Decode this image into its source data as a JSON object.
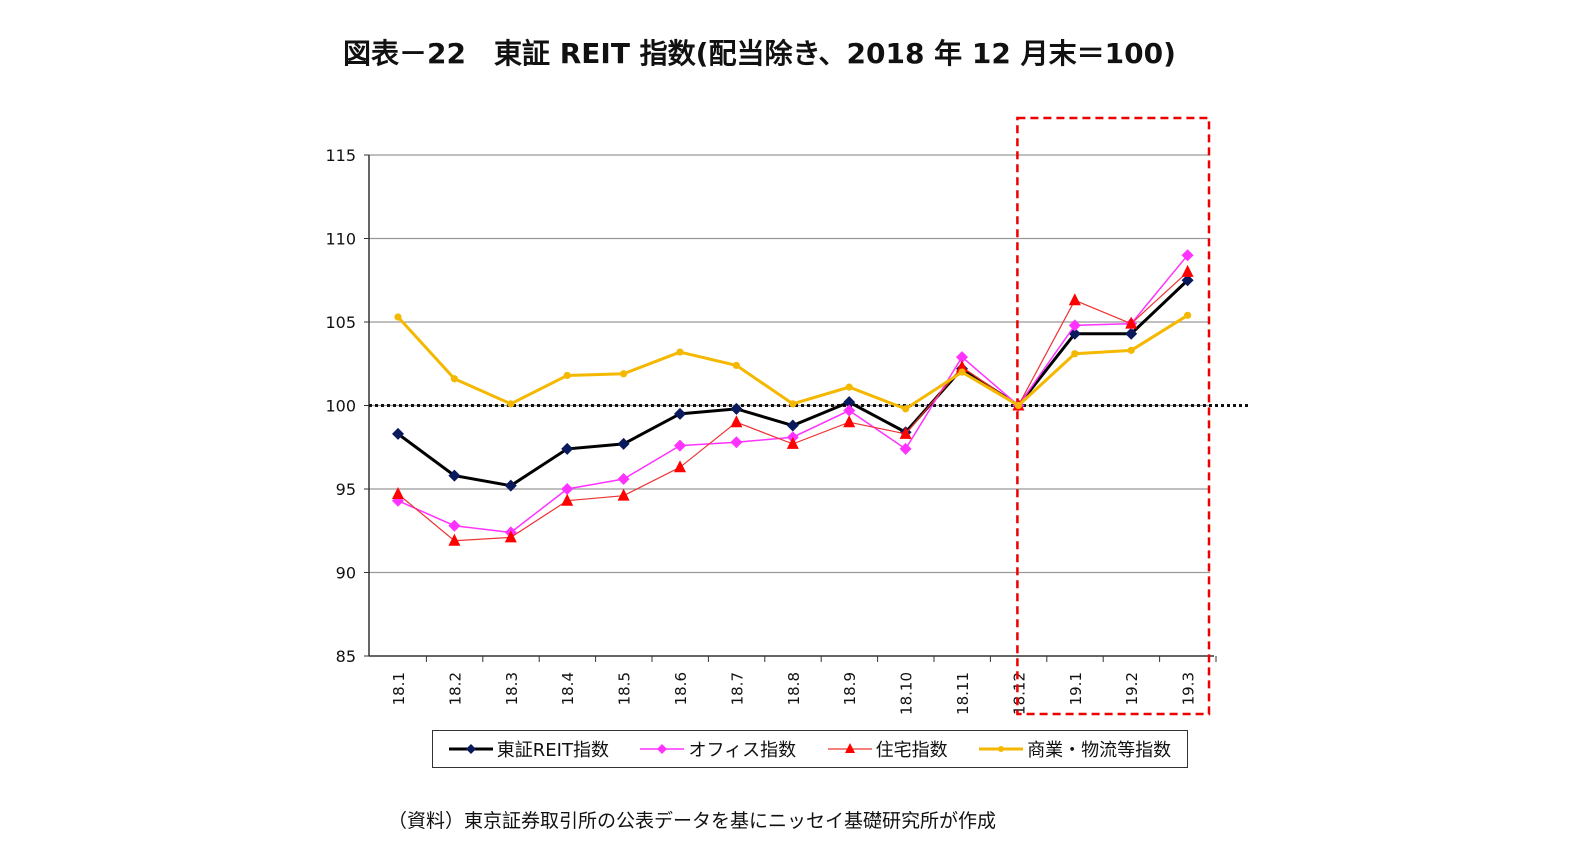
{
  "chart_data": {
    "type": "line",
    "title": "図表－22　東証 REIT 指数(配当除き、2018 年 12 月末＝100)",
    "categories": [
      "18.1",
      "18.2",
      "18.3",
      "18.4",
      "18.5",
      "18.6",
      "18.7",
      "18.8",
      "18.9",
      "18.10",
      "18.11",
      "18.12",
      "19.1",
      "19.2",
      "19.3"
    ],
    "ylim": [
      85,
      115
    ],
    "yticks": [
      85,
      90,
      95,
      100,
      105,
      110,
      115
    ],
    "grid": true,
    "reference_line": 100,
    "highlight_range": [
      "18.12",
      "19.3"
    ],
    "legend_position": "bottom",
    "series": [
      {
        "name": "東証REIT指数",
        "color": "#000000",
        "marker_color": "#0a1a5c",
        "marker": "diamond",
        "values": [
          98.3,
          95.8,
          95.2,
          97.4,
          97.7,
          99.5,
          99.8,
          98.8,
          100.2,
          98.4,
          102.2,
          100.0,
          104.3,
          104.3,
          107.5
        ]
      },
      {
        "name": "オフィス指数",
        "color": "#ff33ff",
        "marker_color": "#ff33ff",
        "marker": "diamond",
        "values": [
          94.3,
          92.8,
          92.4,
          95.0,
          95.6,
          97.6,
          97.8,
          98.1,
          99.7,
          97.4,
          102.9,
          100.0,
          104.8,
          104.9,
          109.0
        ]
      },
      {
        "name": "住宅指数",
        "color": "#ee3333",
        "marker_color": "#ff0000",
        "marker": "triangle",
        "values": [
          94.7,
          91.9,
          92.1,
          94.3,
          94.6,
          96.3,
          99.0,
          97.7,
          99.0,
          98.3,
          102.3,
          100.0,
          106.3,
          104.9,
          108.0
        ]
      },
      {
        "name": "商業・物流等指数",
        "color": "#f5b800",
        "marker_color": "#f5b800",
        "marker": "circle",
        "values": [
          105.3,
          101.6,
          100.1,
          101.8,
          101.9,
          103.2,
          102.4,
          100.1,
          101.1,
          99.8,
          102.0,
          100.0,
          103.1,
          103.3,
          105.4
        ]
      }
    ]
  },
  "source": "（資料）東京証券取引所の公表データを基にニッセイ基礎研究所が作成"
}
